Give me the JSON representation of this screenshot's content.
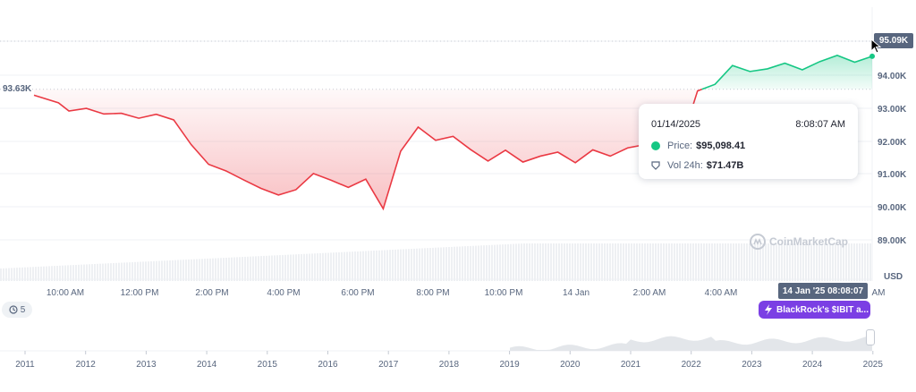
{
  "chart_data": {
    "type": "area",
    "currency_label": "USD",
    "y_ticks": [
      "95.09K",
      "94.00K",
      "93.00K",
      "92.00K",
      "91.00K",
      "90.00K",
      "89.00K"
    ],
    "ylim": [
      88400,
      95800
    ],
    "x_ticks": [
      "10:00 AM",
      "12:00 PM",
      "2:00 PM",
      "4:00 PM",
      "6:00 PM",
      "8:00 PM",
      "10:00 PM",
      "14 Jan",
      "2:00 AM",
      "4:00 AM",
      "AM"
    ],
    "reference_value": 93630,
    "reference_label": "93.63K",
    "series": [
      {
        "x": [
          0,
          0.7,
          1,
          1.5,
          2,
          2.5,
          3,
          3.5,
          4,
          4.5,
          5,
          5.5,
          6,
          6.5,
          7,
          7.5,
          8,
          8.5,
          9,
          9.5,
          10,
          10.5,
          11,
          11.5,
          12,
          12.5,
          13,
          13.5,
          14,
          14.5,
          15,
          15.5,
          16,
          16.5,
          17,
          17.5,
          18,
          18.5,
          19,
          19.5,
          20,
          20.5,
          21,
          21.5,
          22,
          22.5,
          23,
          23.5,
          24
        ],
        "values": [
          93450,
          93220,
          92970,
          93050,
          92880,
          92900,
          92750,
          92870,
          92700,
          91950,
          91350,
          91150,
          90880,
          90620,
          90420,
          90580,
          91070,
          90870,
          90650,
          90900,
          90000,
          91750,
          92480,
          92080,
          92200,
          91800,
          91450,
          91780,
          91420,
          91600,
          91720,
          91400,
          91790,
          91600,
          91850,
          91950,
          92050,
          91900,
          93580,
          93780,
          94350,
          94170,
          94250,
          94420,
          94220,
          94470,
          94660,
          94450,
          94630
        ]
      }
    ],
    "current_price_label": "95.09K",
    "volume_note": "24h volume bars",
    "navigator": {
      "year_labels": [
        "2011",
        "2012",
        "2013",
        "2014",
        "2015",
        "2016",
        "2017",
        "2018",
        "2019",
        "2020",
        "2021",
        "2022",
        "2023",
        "2024",
        "2025"
      ]
    },
    "colors": {
      "up": "#16c784",
      "down": "#ea3943",
      "grid": "#eff2f5",
      "axis_text": "#58667e"
    }
  },
  "tooltip": {
    "date": "01/14/2025",
    "time": "8:08:07 AM",
    "price_label": "Price:",
    "price_value": "$95,098.41",
    "vol_label": "Vol 24h:",
    "vol_value": "$71.47B"
  },
  "crosshair_time": "14 Jan '25 08:08:07",
  "events_count": "5",
  "news_label": "BlackRock's $IBIT a...",
  "watermark": "CoinMarketCap"
}
